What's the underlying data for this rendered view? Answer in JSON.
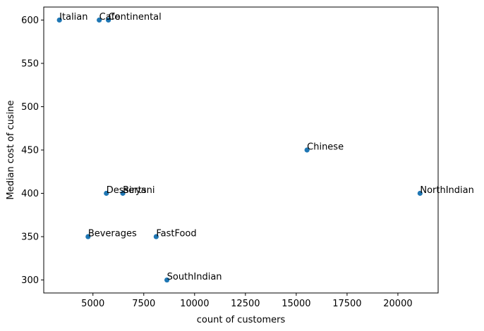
{
  "chart_data": {
    "type": "scatter",
    "title": "",
    "xlabel": "count of customers",
    "ylabel": "Median cost of cusine",
    "xlim": [
      2580,
      21980
    ],
    "ylim": [
      285,
      615
    ],
    "x_ticks": [
      5000,
      7500,
      10000,
      12500,
      15000,
      17500,
      20000
    ],
    "x_tick_labels": [
      "5000",
      "7500",
      "10000",
      "12500",
      "15000",
      "17500",
      "20000"
    ],
    "y_ticks": [
      300,
      350,
      400,
      450,
      500,
      550,
      600
    ],
    "y_tick_labels": [
      "300",
      "350",
      "400",
      "450",
      "500",
      "550",
      "600"
    ],
    "grid": false,
    "marker_color": "#1f77b4",
    "points": [
      {
        "label": "Italian",
        "x": 3350,
        "y": 600
      },
      {
        "label": "Cafe",
        "x": 5310,
        "y": 600
      },
      {
        "label": "Continental",
        "x": 5760,
        "y": 600
      },
      {
        "label": "Chinese",
        "x": 15530,
        "y": 450
      },
      {
        "label": "NorthIndian",
        "x": 21090,
        "y": 400
      },
      {
        "label": "Desserts",
        "x": 5660,
        "y": 400
      },
      {
        "label": "Biryani",
        "x": 6470,
        "y": 400
      },
      {
        "label": "Beverages",
        "x": 4760,
        "y": 350
      },
      {
        "label": "FastFood",
        "x": 8110,
        "y": 350
      },
      {
        "label": "SouthIndian",
        "x": 8640,
        "y": 300
      }
    ]
  }
}
